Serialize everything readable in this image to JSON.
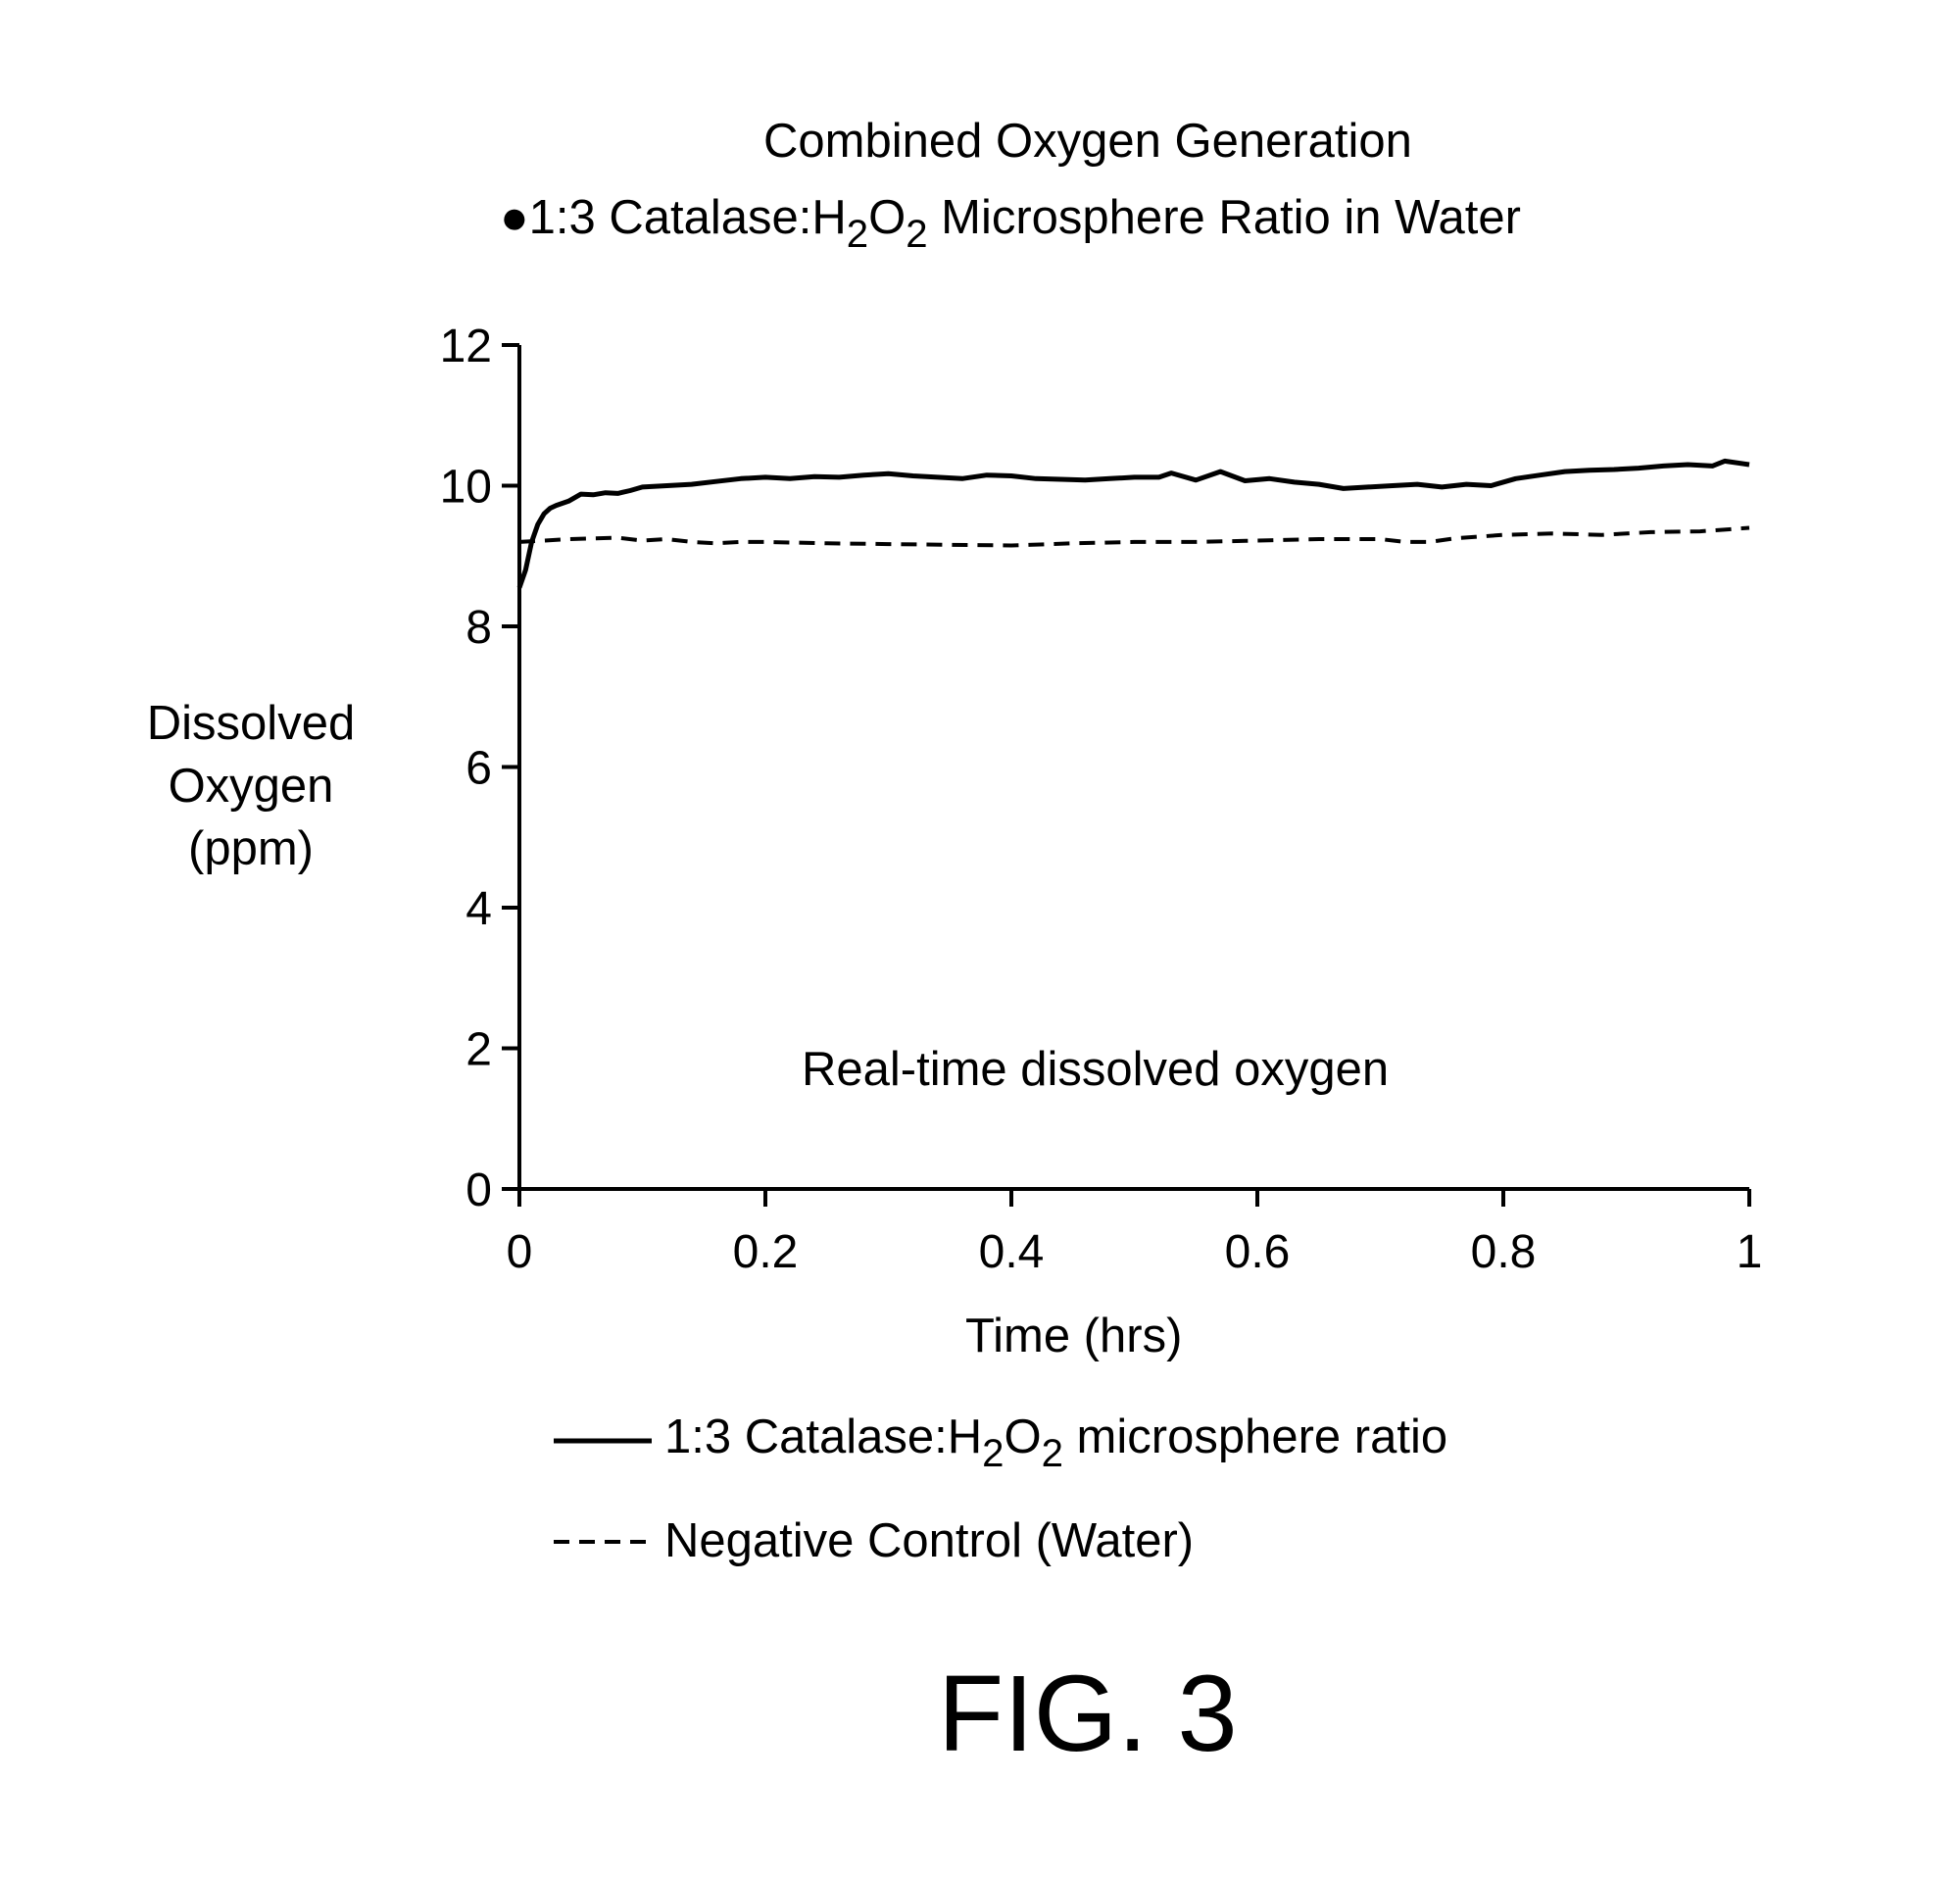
{
  "title_line1": "Combined Oxygen Generation",
  "title_line2": {
    "bullet": "●",
    "prefix": "1:3 Catalase:H",
    "sub1": "2",
    "mid": "O",
    "sub2": "2",
    "suffix": " Microsphere Ratio in Water"
  },
  "annotation": "Real-time dissolved oxygen",
  "legend": {
    "series1": {
      "prefix": "1:3 Catalase:H",
      "sub1": "2",
      "mid": "O",
      "sub2": "2",
      "suffix": " microsphere ratio"
    },
    "series2": {
      "label": "Negative Control (Water)"
    }
  },
  "figure_label": "FIG. 3",
  "chart_data": {
    "type": "line",
    "xlabel": "Time (hrs)",
    "ylabel_lines": [
      "Dissolved",
      "Oxygen",
      "(ppm)"
    ],
    "xlim": [
      0,
      1
    ],
    "ylim": [
      0,
      12
    ],
    "x_ticks": [
      0,
      0.2,
      0.4,
      0.6,
      0.8,
      1
    ],
    "x_tick_labels": [
      "0",
      "0.2",
      "0.4",
      "0.6",
      "0.8",
      "1"
    ],
    "y_ticks": [
      0,
      2,
      4,
      6,
      8,
      10,
      12
    ],
    "y_tick_labels": [
      "0",
      "2",
      "4",
      "6",
      "8",
      "10",
      "12"
    ],
    "grid": false,
    "legend_position": "bottom",
    "series": [
      {
        "style": "solid",
        "color": "#000000",
        "x": [
          0,
          0.005,
          0.01,
          0.015,
          0.02,
          0.025,
          0.03,
          0.04,
          0.05,
          0.06,
          0.07,
          0.08,
          0.09,
          0.1,
          0.12,
          0.14,
          0.16,
          0.18,
          0.2,
          0.22,
          0.24,
          0.26,
          0.28,
          0.3,
          0.32,
          0.34,
          0.36,
          0.38,
          0.4,
          0.42,
          0.44,
          0.46,
          0.48,
          0.5,
          0.52,
          0.53,
          0.55,
          0.57,
          0.59,
          0.61,
          0.63,
          0.65,
          0.67,
          0.69,
          0.71,
          0.73,
          0.75,
          0.77,
          0.79,
          0.81,
          0.83,
          0.85,
          0.87,
          0.89,
          0.91,
          0.93,
          0.95,
          0.97,
          0.98,
          1.0
        ],
        "y": [
          8.55,
          8.8,
          9.2,
          9.45,
          9.6,
          9.68,
          9.72,
          9.78,
          9.88,
          9.87,
          9.9,
          9.89,
          9.93,
          9.98,
          10.0,
          10.02,
          10.06,
          10.1,
          10.12,
          10.1,
          10.13,
          10.12,
          10.15,
          10.17,
          10.14,
          10.12,
          10.1,
          10.15,
          10.14,
          10.1,
          10.09,
          10.08,
          10.1,
          10.12,
          10.12,
          10.18,
          10.08,
          10.2,
          10.07,
          10.1,
          10.05,
          10.02,
          9.96,
          9.98,
          10.0,
          10.02,
          9.98,
          10.02,
          10.0,
          10.1,
          10.15,
          10.2,
          10.22,
          10.23,
          10.25,
          10.28,
          10.3,
          10.28,
          10.35,
          10.3
        ]
      },
      {
        "style": "dashed",
        "color": "#000000",
        "x": [
          0,
          0.02,
          0.04,
          0.06,
          0.08,
          0.1,
          0.12,
          0.14,
          0.16,
          0.18,
          0.2,
          0.25,
          0.3,
          0.35,
          0.4,
          0.45,
          0.5,
          0.55,
          0.6,
          0.65,
          0.7,
          0.72,
          0.74,
          0.76,
          0.8,
          0.84,
          0.88,
          0.92,
          0.96,
          1.0
        ],
        "y": [
          9.2,
          9.22,
          9.24,
          9.25,
          9.26,
          9.22,
          9.24,
          9.2,
          9.18,
          9.2,
          9.2,
          9.18,
          9.17,
          9.16,
          9.15,
          9.18,
          9.2,
          9.2,
          9.22,
          9.24,
          9.24,
          9.2,
          9.2,
          9.25,
          9.3,
          9.32,
          9.3,
          9.34,
          9.35,
          9.4
        ]
      }
    ]
  }
}
